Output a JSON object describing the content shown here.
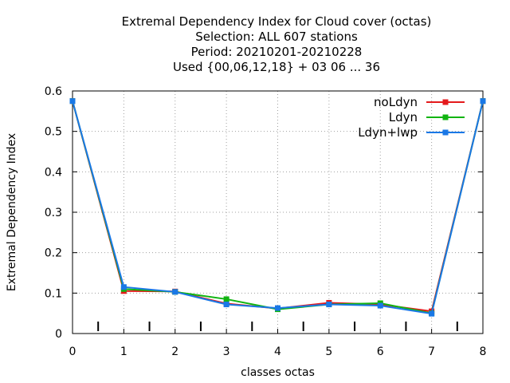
{
  "chart_data": {
    "type": "line",
    "title_lines": [
      "Extremal Dependency Index  for Cloud cover (octas)",
      "Selection: ALL    607 stations",
      "Period: 20210201-20210228",
      "Used {00,06,12,18} + 03 06 ... 36"
    ],
    "xlabel": "classes octas",
    "ylabel": "Extremal Dependency Index",
    "xlim": [
      0,
      8
    ],
    "ylim": [
      0,
      0.6
    ],
    "x_ticks": [
      0,
      1,
      2,
      3,
      4,
      5,
      6,
      7,
      8
    ],
    "x_tick_labels": [
      "0",
      "1",
      "2",
      "3",
      "4",
      "5",
      "6",
      "7",
      "8"
    ],
    "y_ticks": [
      0,
      0.1,
      0.2,
      0.3,
      0.4,
      0.5,
      0.6
    ],
    "y_tick_labels": [
      "0",
      "0.1",
      "0.2",
      "0.3",
      "0.4",
      "0.5",
      "0.6"
    ],
    "grid": true,
    "legend_position": "top-right",
    "x": [
      0,
      1,
      2,
      3,
      4,
      5,
      6,
      7,
      8
    ],
    "series": [
      {
        "name": "noLdyn",
        "color": "#e41a1c",
        "values": [
          0.575,
          0.105,
          0.104,
          0.074,
          0.062,
          0.076,
          0.072,
          0.055,
          0.575
        ]
      },
      {
        "name": "Ldyn",
        "color": "#11b411",
        "values": [
          0.575,
          0.11,
          0.103,
          0.085,
          0.06,
          0.072,
          0.075,
          0.05,
          0.575
        ]
      },
      {
        "name": "Ldyn+lwp",
        "color": "#1a78e6",
        "values": [
          0.575,
          0.115,
          0.103,
          0.072,
          0.063,
          0.072,
          0.069,
          0.049,
          0.575
        ]
      }
    ]
  }
}
